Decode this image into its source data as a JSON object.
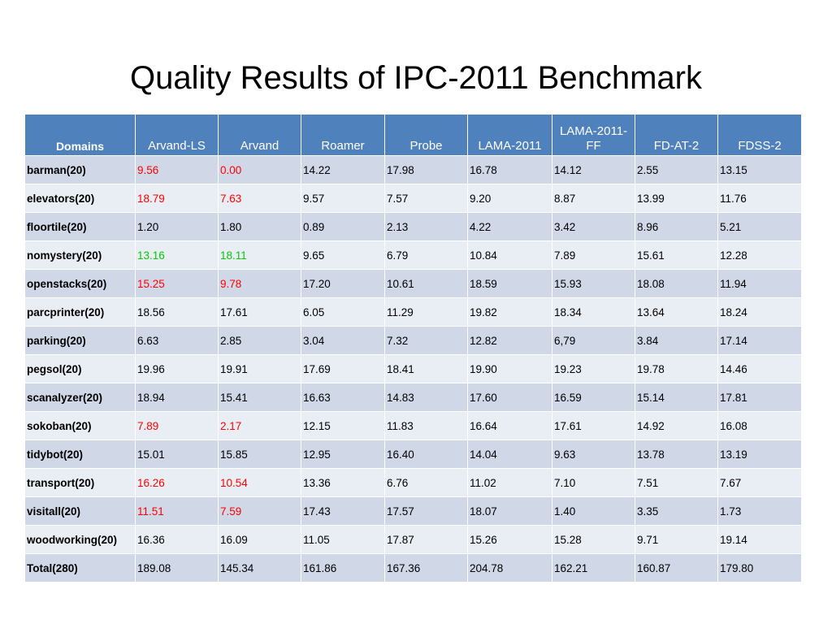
{
  "title": "Quality Results of IPC-2011 Benchmark",
  "table": {
    "headers": [
      "Domains",
      "Arvand-LS",
      "Arvand",
      "Roamer",
      "Probe",
      "LAMA-2011",
      "LAMA-2011-FF",
      "FD-AT-2",
      "FDSS-2"
    ],
    "rows": [
      {
        "cells": [
          "barman(20)",
          "9.56",
          "0.00",
          "14.22",
          "17.98",
          "16.78",
          " 14.12",
          "2.55",
          "13.15"
        ],
        "highlight": "red"
      },
      {
        "cells": [
          "elevators(20)",
          "18.79",
          "7.63",
          "9.57",
          "7.57",
          "9.20",
          " 8.87",
          " 13.99",
          "11.76"
        ],
        "highlight": "red"
      },
      {
        "cells": [
          "floortile(20)",
          "1.20",
          "1.80",
          "0.89",
          "2.13",
          "4.22",
          " 3.42",
          " 8.96",
          "5.21"
        ],
        "highlight": ""
      },
      {
        "cells": [
          "nomystery(20)",
          "13.16",
          "18.11",
          "9.65",
          "6.79",
          "10.84",
          " 7.89",
          "15.61",
          "12.28"
        ],
        "highlight": "green"
      },
      {
        "cells": [
          "openstacks(20)",
          "15.25",
          "9.78",
          "17.20",
          "10.61",
          "18.59",
          " 15.93",
          "18.08",
          "11.94"
        ],
        "highlight": "red"
      },
      {
        "cells": [
          "parcprinter(20)",
          "18.56",
          "17.61",
          "6.05",
          "11.29",
          "19.82",
          " 18.34",
          "13.64",
          "18.24"
        ],
        "highlight": ""
      },
      {
        "cells": [
          "parking(20)",
          "6.63",
          "2.85",
          "3.04",
          "7.32",
          "12.82",
          " 6,79",
          "3.84",
          "17.14"
        ],
        "highlight": ""
      },
      {
        "cells": [
          "pegsol(20)",
          "19.96",
          "19.91",
          "17.69",
          "18.41",
          "19.90",
          " 19.23",
          "19.78",
          "14.46"
        ],
        "highlight": ""
      },
      {
        "cells": [
          "scanalyzer(20)",
          "18.94",
          "15.41",
          "16.63",
          "14.83",
          "17.60",
          "16.59",
          "15.14",
          "17.81"
        ],
        "highlight": ""
      },
      {
        "cells": [
          "sokoban(20)",
          "7.89",
          "2.17",
          "12.15",
          "11.83",
          "16.64",
          " 17.61",
          "14.92",
          "16.08"
        ],
        "highlight": "red"
      },
      {
        "cells": [
          "tidybot(20)",
          "15.01",
          "15.85",
          "12.95",
          "16.40",
          "14.04",
          " 9.63",
          "13.78",
          "13.19"
        ],
        "highlight": ""
      },
      {
        "cells": [
          "transport(20)",
          "16.26",
          "10.54",
          "13.36",
          "6.76",
          "11.02",
          "7.10",
          "7.51",
          "7.67"
        ],
        "highlight": "red"
      },
      {
        "cells": [
          "visitall(20)",
          "11.51",
          "7.59",
          "17.43",
          "17.57",
          "18.07",
          " 1.40",
          "3.35",
          "1.73"
        ],
        "highlight": "red"
      },
      {
        "cells": [
          "woodworking(20)",
          "16.36",
          "16.09",
          "11.05",
          "17.87",
          "15.26",
          " 15.28",
          "9.71",
          "19.14"
        ],
        "highlight": ""
      },
      {
        "cells": [
          "Total(280)",
          "189.08",
          "145.34",
          "161.86",
          "167.36",
          "204.78",
          "162.21",
          "160.87",
          "179.80"
        ],
        "highlight": ""
      }
    ]
  },
  "colors": {
    "header_bg": "#4f81bd",
    "row_odd": "#d0d8e8",
    "row_even": "#e9edf4",
    "highlight_red": "#ff0000",
    "highlight_green": "#00cc00"
  }
}
